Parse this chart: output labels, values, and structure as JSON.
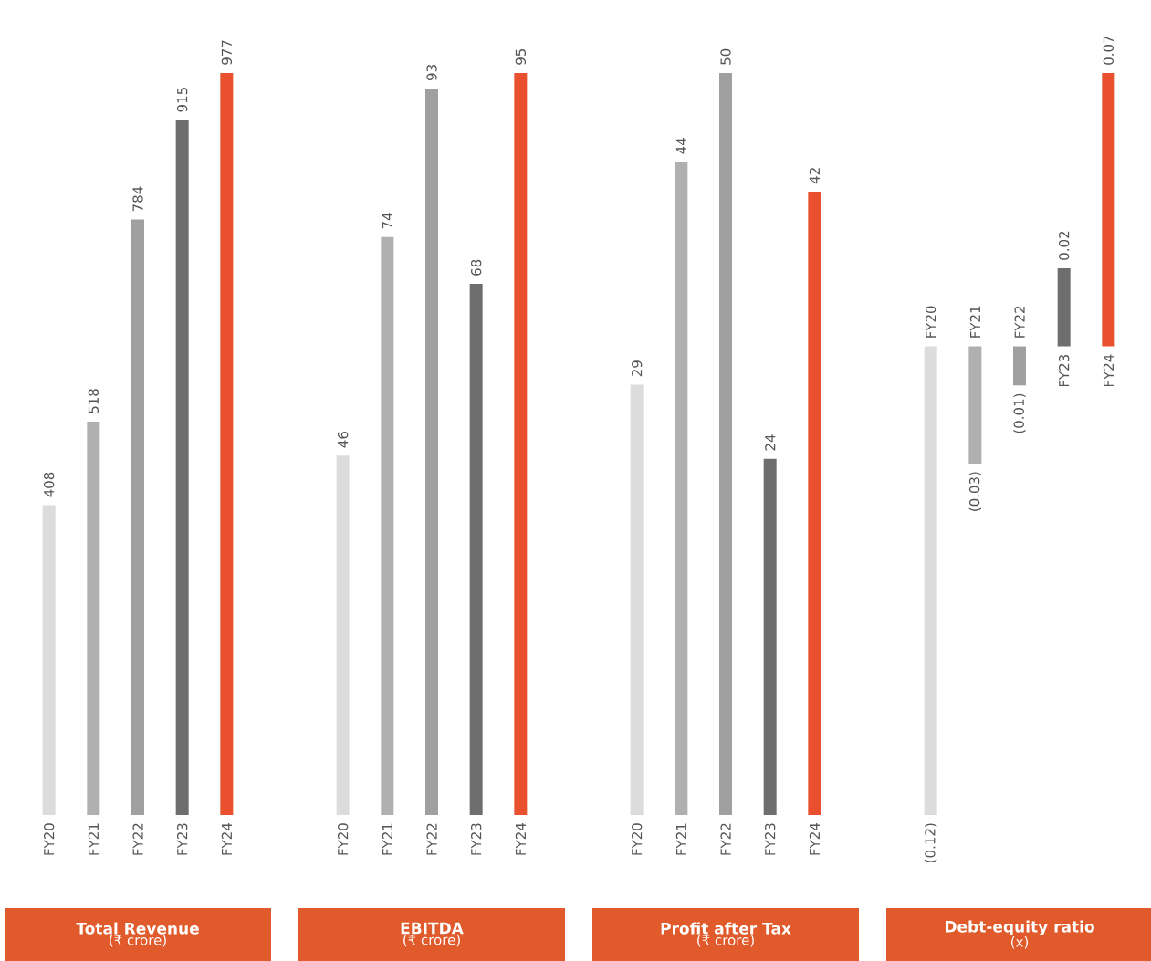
{
  "chart_data": [
    {
      "type": "bar",
      "title": "Total Revenue",
      "subtitle": "(₹ crore)",
      "categories": [
        "FY20",
        "FY21",
        "FY22",
        "FY23",
        "FY24"
      ],
      "values": [
        408,
        518,
        784,
        915,
        977
      ],
      "colors": [
        "#dcdcdc",
        "#b0b0b0",
        "#a0a0a0",
        "#6e6e6e",
        "#e8502e"
      ],
      "data_labels": true
    },
    {
      "type": "bar",
      "title": "EBITDA",
      "subtitle": "(₹ crore)",
      "categories": [
        "FY20",
        "FY21",
        "FY22",
        "FY23",
        "FY24"
      ],
      "values": [
        46,
        74,
        93,
        68,
        95
      ],
      "colors": [
        "#dcdcdc",
        "#b0b0b0",
        "#a0a0a0",
        "#6e6e6e",
        "#e8502e"
      ],
      "data_labels": true
    },
    {
      "type": "bar",
      "title": "Profit after Tax",
      "subtitle": "(₹ crore)",
      "categories": [
        "FY20",
        "FY21",
        "FY22",
        "FY23",
        "FY24"
      ],
      "values": [
        29,
        44,
        50,
        24,
        42
      ],
      "colors": [
        "#dcdcdc",
        "#b0b0b0",
        "#a0a0a0",
        "#6e6e6e",
        "#e8502e"
      ],
      "data_labels": true
    },
    {
      "type": "bar",
      "title": "Debt-equity ratio",
      "subtitle": "(x)",
      "categories": [
        "FY20",
        "FY21",
        "FY22",
        "FY23",
        "FY24"
      ],
      "values": [
        -0.12,
        -0.03,
        -0.01,
        0.02,
        0.07
      ],
      "value_labels": [
        "(0.12)",
        "(0.03)",
        "(0.01)",
        "0.02",
        "0.07"
      ],
      "colors": [
        "#dcdcdc",
        "#b0b0b0",
        "#a0a0a0",
        "#6e6e6e",
        "#e8502e"
      ]
    }
  ]
}
